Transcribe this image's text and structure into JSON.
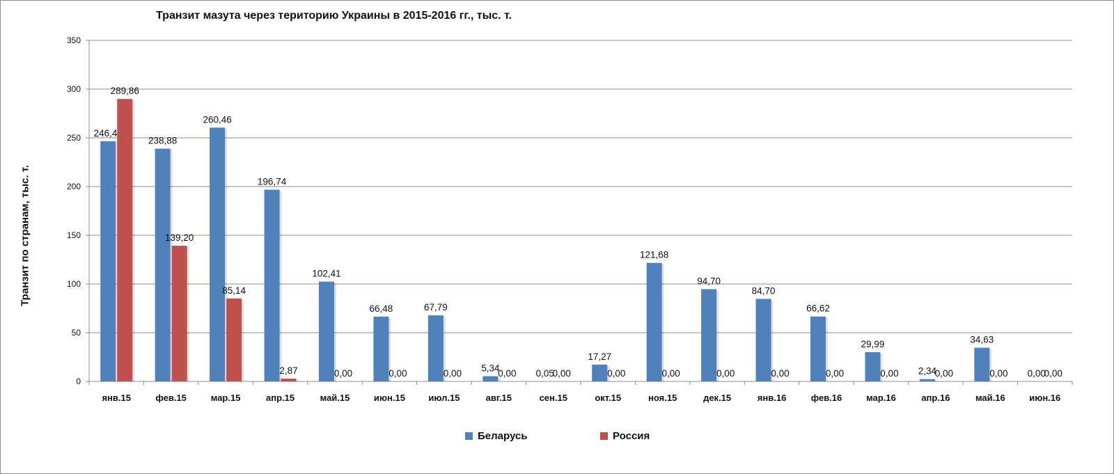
{
  "chart_data": {
    "type": "bar",
    "title": "Транзит мазута через територию Украины в 2015-2016 гг., тыс. т.",
    "xlabel": "",
    "ylabel": "Транзит по странам, тыс. т.",
    "ylim": [
      0,
      350
    ],
    "yticks": [
      "0",
      "50",
      "100",
      "150",
      "200",
      "250",
      "300",
      "350"
    ],
    "grid": true,
    "legend_position": "bottom",
    "categories": [
      "янв.15",
      "фев.15",
      "мар.15",
      "апр.15",
      "май.15",
      "июн.15",
      "июл.15",
      "авг.15",
      "сен.15",
      "окт.15",
      "ноя.15",
      "дек.15",
      "янв.16",
      "фев.16",
      "мар.16",
      "апр.16",
      "май.16",
      "июн.16"
    ],
    "series": [
      {
        "name": "Беларусь",
        "color": "#4f81bd",
        "values": [
          246.49,
          238.88,
          260.46,
          196.74,
          102.41,
          66.48,
          67.79,
          5.34,
          0.05,
          17.27,
          121.68,
          94.7,
          84.7,
          66.62,
          29.99,
          2.34,
          34.63,
          0.0
        ],
        "labels": [
          "246,49",
          "238,88",
          "260,46",
          "196,74",
          "102,41",
          "66,48",
          "67,79",
          "5,34",
          "0,05",
          "17,27",
          "121,68",
          "94,70",
          "84,70",
          "66,62",
          "29,99",
          "2,34",
          "34,63",
          "0,00"
        ]
      },
      {
        "name": "Россия",
        "color": "#c0504d",
        "values": [
          289.86,
          139.2,
          85.14,
          2.87,
          0.0,
          0.0,
          0.0,
          0.0,
          0.0,
          0.0,
          0.0,
          0.0,
          0.0,
          0.0,
          0.0,
          0.0,
          0.0,
          0.0
        ],
        "labels": [
          "289,86",
          "139,20",
          "85,14",
          "2,87",
          "0,00",
          "0,00",
          "0,00",
          "0,00",
          "0,00",
          "0,00",
          "0,00",
          "0,00",
          "0,00",
          "0,00",
          "0,00",
          "0,00",
          "0,00",
          "0,00"
        ]
      }
    ]
  }
}
